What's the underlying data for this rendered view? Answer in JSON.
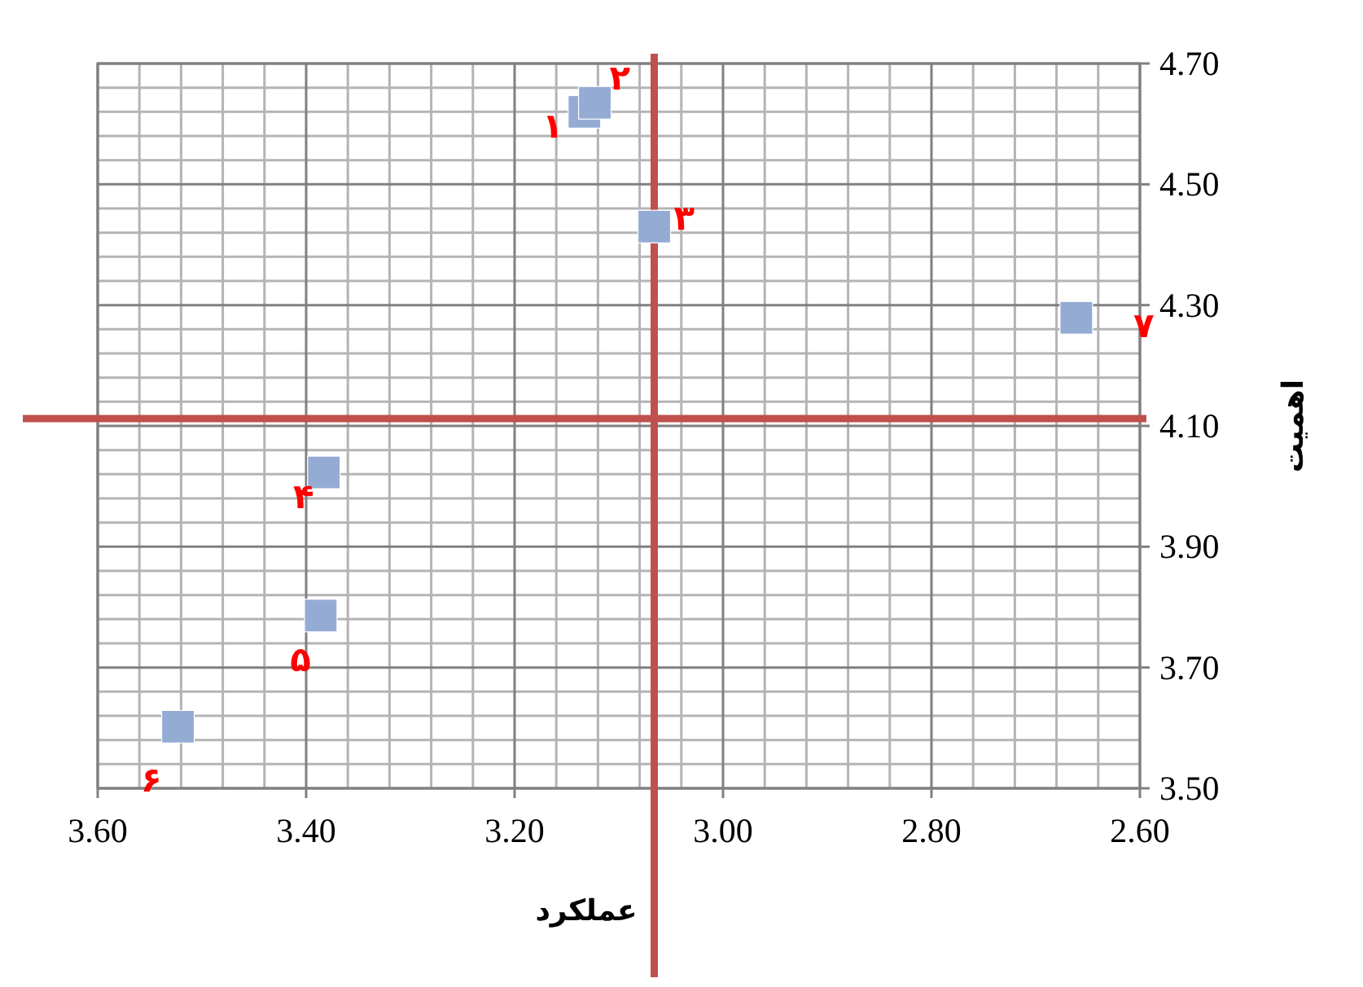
{
  "chart_data": {
    "type": "scatter",
    "xlabel": "عملکرد",
    "ylabel": "اهمیت",
    "x": [
      3.133,
      3.123,
      3.066,
      3.383,
      3.386,
      3.523,
      2.661
    ],
    "series": [
      {
        "color": "#94abd4",
        "values": [
          4.62,
          4.635,
          4.43,
          4.023,
          3.786,
          3.602,
          4.279
        ]
      }
    ],
    "marker": "square",
    "grid": true,
    "xlim": [
      3.6,
      2.6
    ],
    "ylim": [
      3.5,
      4.7
    ],
    "xticks": [
      {
        "value": 3.6,
        "label": "3.60"
      },
      {
        "value": 3.4,
        "label": "3.40"
      },
      {
        "value": 3.2,
        "label": "3.20"
      },
      {
        "value": 3.0,
        "label": "3.00"
      },
      {
        "value": 2.8,
        "label": "2.80"
      },
      {
        "value": 2.6,
        "label": "2.60"
      }
    ],
    "yticks": [
      {
        "value": 3.5,
        "label": "3.50"
      },
      {
        "value": 3.7,
        "label": "3.70"
      },
      {
        "value": 3.9,
        "label": "3.90"
      },
      {
        "value": 4.1,
        "label": "4.10"
      },
      {
        "value": 4.3,
        "label": "4.30"
      },
      {
        "value": 4.5,
        "label": "4.50"
      },
      {
        "value": 4.7,
        "label": "4.70"
      }
    ],
    "ref_lines": [
      {
        "axis": "x",
        "value": 3.066,
        "color": "#c0504d"
      },
      {
        "axis": "y",
        "value": 4.112,
        "color": "#c0504d"
      }
    ],
    "annotations": [
      {
        "text": "۱",
        "x": 3.133,
        "y": 4.62
      },
      {
        "text": "۲",
        "x": 3.123,
        "y": 4.635
      },
      {
        "text": "۳",
        "x": 3.066,
        "y": 4.43
      },
      {
        "text": "۴",
        "x": 3.383,
        "y": 4.023
      },
      {
        "text": "۵",
        "x": 3.386,
        "y": 3.786
      },
      {
        "text": "۶",
        "x": 3.523,
        "y": 3.602
      },
      {
        "text": "۷",
        "x": 2.661,
        "y": 4.279
      }
    ]
  }
}
